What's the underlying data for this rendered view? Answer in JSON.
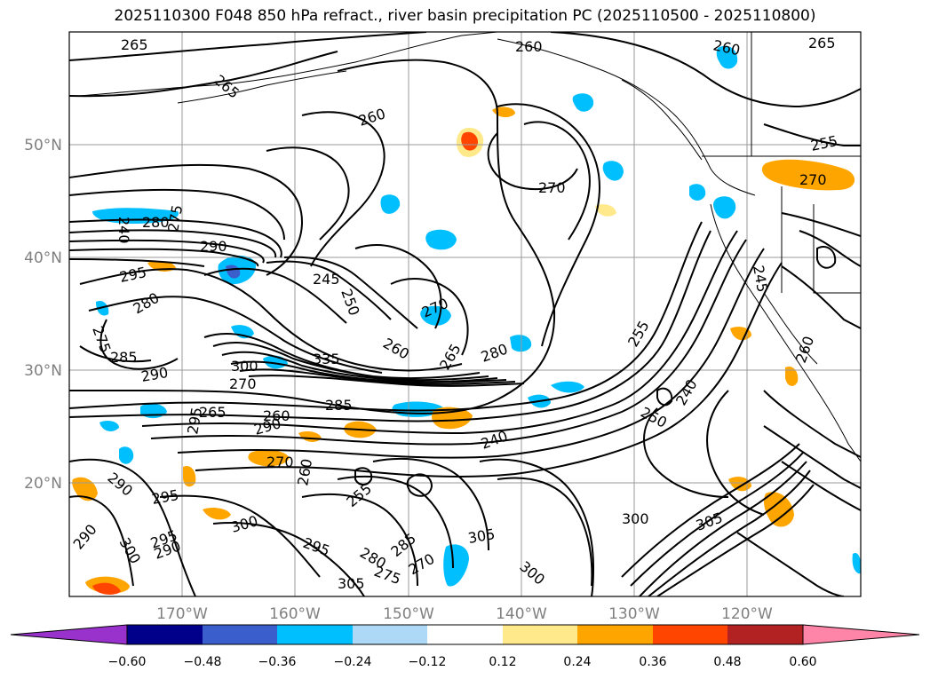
{
  "title": "2025110300 F048 850 hPa refract., river basin precipitation PC (2025110500 - 2025110800)",
  "lat_labels": [
    "50°N",
    "40°N",
    "30°N",
    "20°N"
  ],
  "lon_labels": [
    "170°W",
    "160°W",
    "150°W",
    "140°W",
    "130°W",
    "120°W"
  ],
  "colorbar": {
    "ticks": [
      "−0.60",
      "−0.48",
      "−0.36",
      "−0.24",
      "−0.12",
      "0.12",
      "0.24",
      "0.36",
      "0.48",
      "0.60"
    ],
    "colors": [
      "#9932cc",
      "#00008b",
      "#3a5fcd",
      "#00bfff",
      "#add8f6",
      "#ffffff",
      "#ffe98a",
      "#ffa500",
      "#ff4500",
      "#b22222",
      "#ff85a8"
    ]
  },
  "contour_labels": [
    "265",
    "260",
    "260",
    "265",
    "265",
    "255",
    "270",
    "270",
    "240",
    "260",
    "275",
    "290",
    "280",
    "295",
    "280",
    "245",
    "250",
    "270",
    "275",
    "285",
    "290",
    "260",
    "335",
    "265",
    "280",
    "295",
    "270",
    "265",
    "290",
    "260",
    "285",
    "255",
    "250",
    "240",
    "260",
    "245",
    "240",
    "290",
    "295",
    "295",
    "300",
    "270",
    "260",
    "255",
    "290",
    "290",
    "300",
    "285",
    "305",
    "295",
    "300",
    "300",
    "280",
    "275",
    "270",
    "305",
    "305",
    "300"
  ]
}
